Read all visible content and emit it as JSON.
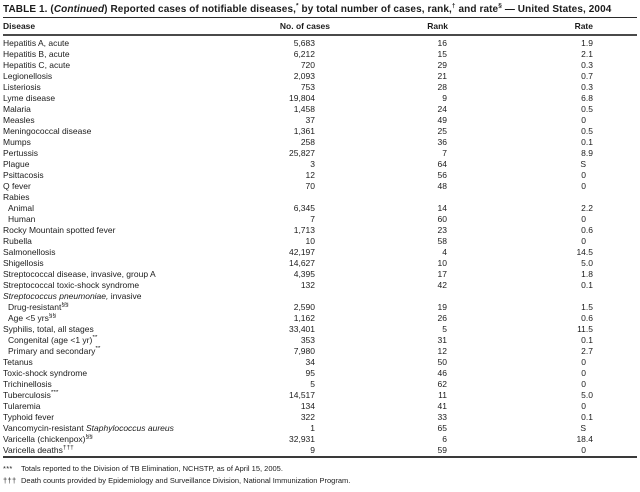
{
  "title": {
    "segments": [
      {
        "text": "TABLE 1. ("
      },
      {
        "text": "Continued",
        "italic": true
      },
      {
        "text": ") Reported cases of notifiable diseases,"
      },
      {
        "text": "*",
        "sup": true
      },
      {
        "text": " by total number of cases, rank,"
      },
      {
        "text": "†",
        "sup": true
      },
      {
        "text": " and rate"
      },
      {
        "text": "§",
        "sup": true
      },
      {
        "text": " — United States, 2004"
      }
    ]
  },
  "columns": [
    "Disease",
    "No. of cases",
    "Rank",
    "Rate"
  ],
  "rows": [
    {
      "disease": "Hepatitis A, acute",
      "cases": "5,683",
      "rank": "16",
      "rate": "1.9"
    },
    {
      "disease": "Hepatitis B, acute",
      "cases": "6,212",
      "rank": "15",
      "rate": "2.1"
    },
    {
      "disease": "Hepatitis C, acute",
      "cases": "720",
      "rank": "29",
      "rate": "0.3"
    },
    {
      "disease": "Legionellosis",
      "cases": "2,093",
      "rank": "21",
      "rate": "0.7"
    },
    {
      "disease": "Listeriosis",
      "cases": "753",
      "rank": "28",
      "rate": "0.3"
    },
    {
      "disease": "Lyme disease",
      "cases": "19,804",
      "rank": "9",
      "rate": "6.8"
    },
    {
      "disease": "Malaria",
      "cases": "1,458",
      "rank": "24",
      "rate": "0.5"
    },
    {
      "disease": "Measles",
      "cases": "37",
      "rank": "49",
      "rate": "0"
    },
    {
      "disease": "Meningococcal disease",
      "cases": "1,361",
      "rank": "25",
      "rate": "0.5"
    },
    {
      "disease": "Mumps",
      "cases": "258",
      "rank": "36",
      "rate": "0.1"
    },
    {
      "disease": "Pertussis",
      "cases": "25,827",
      "rank": "7",
      "rate": "8.9"
    },
    {
      "disease": "Plague",
      "cases": "3",
      "rank": "64",
      "rate": "S"
    },
    {
      "disease": "Psittacosis",
      "cases": "12",
      "rank": "56",
      "rate": "0"
    },
    {
      "disease": "Q fever",
      "cases": "70",
      "rank": "48",
      "rate": "0"
    },
    {
      "disease": "Rabies",
      "cases": "",
      "rank": "",
      "rate": ""
    },
    {
      "disease": "Animal",
      "indent": true,
      "cases": "6,345",
      "rank": "14",
      "rate": "2.2"
    },
    {
      "disease": "Human",
      "indent": true,
      "cases": "7",
      "rank": "60",
      "rate": "0"
    },
    {
      "disease": "Rocky Mountain spotted fever",
      "cases": "1,713",
      "rank": "23",
      "rate": "0.6"
    },
    {
      "disease": "Rubella",
      "cases": "10",
      "rank": "58",
      "rate": "0"
    },
    {
      "disease": "Salmonellosis",
      "cases": "42,197",
      "rank": "4",
      "rate": "14.5"
    },
    {
      "disease": "Shigellosis",
      "cases": "14,627",
      "rank": "10",
      "rate": "5.0"
    },
    {
      "disease": "Streptococcal disease, invasive, group A",
      "cases": "4,395",
      "rank": "17",
      "rate": "1.8"
    },
    {
      "disease": "Streptococcal toxic-shock syndrome",
      "cases": "132",
      "rank": "42",
      "rate": "0.1"
    },
    {
      "parts": [
        {
          "t": "Streptococcus pneumoniae,",
          "i": true
        },
        {
          "t": " invasive"
        }
      ],
      "cases": "",
      "rank": "",
      "rate": ""
    },
    {
      "parts": [
        {
          "t": "Drug-resistant"
        },
        {
          "t": "§§",
          "sup": true
        }
      ],
      "indent": true,
      "cases": "2,590",
      "rank": "19",
      "rate": "1.5"
    },
    {
      "parts": [
        {
          "t": "Age <5 yrs"
        },
        {
          "t": "§§",
          "sup": true
        }
      ],
      "indent": true,
      "cases": "1,162",
      "rank": "26",
      "rate": "0.6"
    },
    {
      "disease": "Syphilis, total, all stages",
      "cases": "33,401",
      "rank": "5",
      "rate": "11.5"
    },
    {
      "parts": [
        {
          "t": "Congenital (age <1 yr)"
        },
        {
          "t": "**",
          "sup": true
        }
      ],
      "indent": true,
      "cases": "353",
      "rank": "31",
      "rate": "0.1"
    },
    {
      "parts": [
        {
          "t": "Primary and secondary"
        },
        {
          "t": "**",
          "sup": true
        }
      ],
      "indent": true,
      "cases": "7,980",
      "rank": "12",
      "rate": "2.7"
    },
    {
      "disease": "Tetanus",
      "cases": "34",
      "rank": "50",
      "rate": "0"
    },
    {
      "disease": "Toxic-shock syndrome",
      "cases": "95",
      "rank": "46",
      "rate": "0"
    },
    {
      "disease": "Trichinellosis",
      "cases": "5",
      "rank": "62",
      "rate": "0"
    },
    {
      "parts": [
        {
          "t": "Tuberculosis"
        },
        {
          "t": "***",
          "sup": true
        }
      ],
      "cases": "14,517",
      "rank": "11",
      "rate": "5.0"
    },
    {
      "disease": "Tularemia",
      "cases": "134",
      "rank": "41",
      "rate": "0"
    },
    {
      "disease": "Typhoid fever",
      "cases": "322",
      "rank": "33",
      "rate": "0.1"
    },
    {
      "parts": [
        {
          "t": "Vancomycin-resistant "
        },
        {
          "t": "Staphylococcus aureus",
          "i": true
        }
      ],
      "cases": "1",
      "rank": "65",
      "rate": "S"
    },
    {
      "parts": [
        {
          "t": "Varicella (chickenpox)"
        },
        {
          "t": "§§",
          "sup": true
        }
      ],
      "cases": "32,931",
      "rank": "6",
      "rate": "18.4"
    },
    {
      "parts": [
        {
          "t": "Varicella deaths"
        },
        {
          "t": "†††",
          "sup": true
        }
      ],
      "cases": "9",
      "rank": "59",
      "rate": "0"
    }
  ],
  "footnotes": [
    {
      "marker": "***",
      "text": "Totals reported to the Division of TB Elimination, NCHSTP, as of April 15, 2005."
    },
    {
      "marker": "†††",
      "text": "Death counts provided by Epidemiology and Surveillance Division, National Immunization Program."
    }
  ],
  "colors": {
    "text": "#1c1c1c",
    "rule": "#3a3a3a",
    "background": "#ffffff"
  }
}
